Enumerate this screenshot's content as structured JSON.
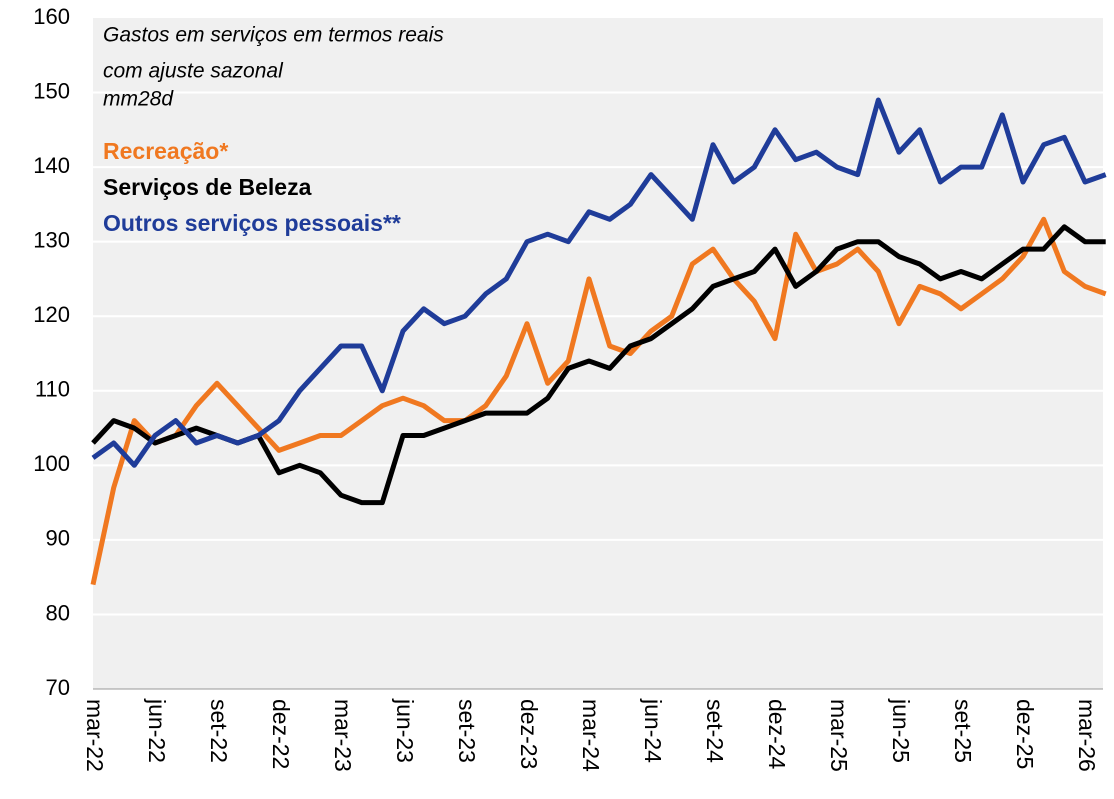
{
  "chart_data": {
    "type": "line",
    "title": "Gastos em serviços em termos reais",
    "subtitle": [
      "com ajuste sazonal",
      "mm28d"
    ],
    "categories": [
      "mar-22",
      null,
      null,
      "jun-22",
      null,
      null,
      "set-22",
      null,
      null,
      "dez-22",
      null,
      null,
      "mar-23",
      null,
      null,
      "jun-23",
      null,
      null,
      "set-23",
      null,
      null,
      "dez-23",
      null,
      null,
      "mar-24",
      null,
      null,
      "jun-24",
      null,
      null,
      "set-24",
      null,
      null,
      "dez-24",
      null,
      null,
      "mar-25",
      null,
      null,
      "jun-25",
      null,
      null,
      "set-25",
      null,
      null,
      "dez-25",
      null,
      null,
      "mar-26",
      null
    ],
    "series": [
      {
        "name": "Recreação*",
        "color": "#f07820",
        "values": [
          84,
          97,
          106,
          103,
          104,
          108,
          111,
          108,
          105,
          102,
          103,
          104,
          104,
          106,
          108,
          109,
          108,
          106,
          106,
          108,
          112,
          119,
          111,
          114,
          125,
          116,
          115,
          118,
          120,
          127,
          129,
          125,
          122,
          117,
          131,
          126,
          127,
          129,
          126,
          119,
          124,
          123,
          121,
          123,
          125,
          128,
          133,
          126,
          124,
          123
        ]
      },
      {
        "name": "Serviços de Beleza",
        "color": "#000000",
        "values": [
          103,
          106,
          105,
          103,
          104,
          105,
          104,
          103,
          104,
          99,
          100,
          99,
          96,
          95,
          95,
          104,
          104,
          105,
          106,
          107,
          107,
          107,
          109,
          113,
          114,
          113,
          116,
          117,
          119,
          121,
          124,
          125,
          126,
          129,
          124,
          126,
          129,
          130,
          130,
          128,
          127,
          125,
          126,
          125,
          127,
          129,
          129,
          132,
          130,
          130
        ]
      },
      {
        "name": "Outros serviços pessoais**",
        "color": "#1f3c99",
        "values": [
          101,
          103,
          100,
          104,
          106,
          103,
          104,
          103,
          104,
          106,
          110,
          113,
          116,
          116,
          110,
          118,
          121,
          119,
          120,
          123,
          125,
          130,
          131,
          130,
          134,
          133,
          135,
          139,
          136,
          133,
          143,
          138,
          140,
          145,
          141,
          142,
          140,
          139,
          149,
          142,
          145,
          138,
          140,
          140,
          147,
          138,
          143,
          144,
          138,
          139
        ]
      }
    ],
    "ylim": [
      70,
      160
    ],
    "yticks": [
      70,
      80,
      90,
      100,
      110,
      120,
      130,
      140,
      150,
      160
    ],
    "grid": true
  }
}
